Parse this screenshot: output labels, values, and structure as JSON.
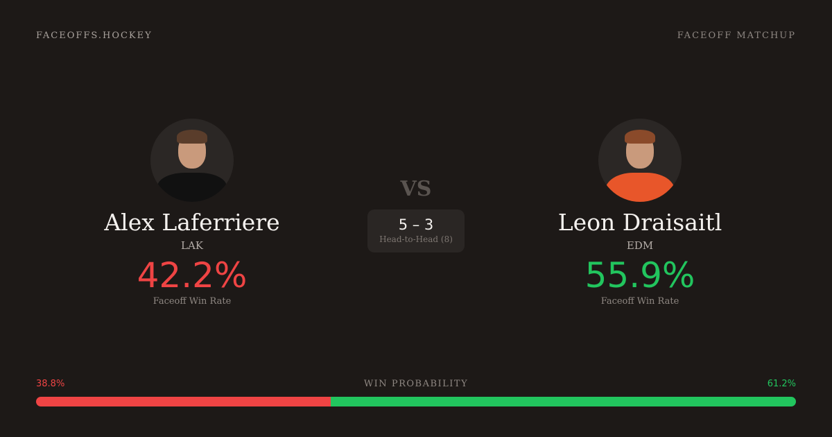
{
  "header": {
    "brand": "FACEOFFS.HOCKEY",
    "kicker": "FACEOFF MATCHUP"
  },
  "players": [
    {
      "name": "Alex Laferriere",
      "team": "LAK",
      "win_rate": "42.2%",
      "win_rate_label": "Faceoff Win Rate",
      "color": "#ef4444",
      "jersey_color": "#111111"
    },
    {
      "name": "Leon Draisaitl",
      "team": "EDM",
      "win_rate": "55.9%",
      "win_rate_label": "Faceoff Win Rate",
      "color": "#22c55e",
      "jersey_color": "#e8562a"
    }
  ],
  "vs": "VS",
  "head_to_head": {
    "score": "5 – 3",
    "label": "Head-to-Head (8)"
  },
  "win_probability": {
    "label": "WIN PROBABILITY",
    "left": "38.8%",
    "right": "61.2%",
    "left_value": 38.8,
    "right_value": 61.2,
    "left_color": "#ef4444",
    "right_color": "#22c55e"
  }
}
